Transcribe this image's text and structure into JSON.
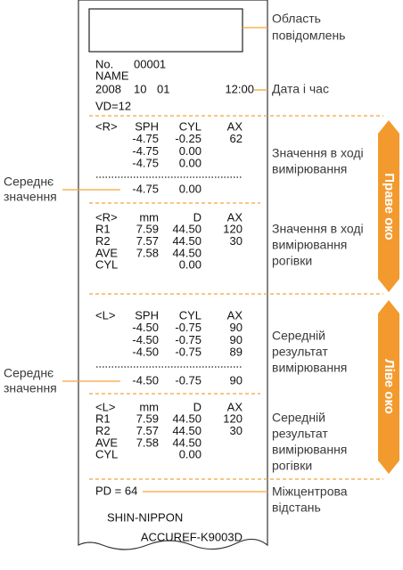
{
  "printout": {
    "header": {
      "no_label": "No.",
      "no": "00001",
      "name": "NAME",
      "year": "2008",
      "month": "10",
      "day": "01",
      "time": "12:00",
      "vd": "VD=12"
    },
    "right_refraction": {
      "header": [
        "<R>",
        "SPH",
        "CYL",
        "AX"
      ],
      "rows": [
        [
          "-4.75",
          "-0.25",
          "62"
        ],
        [
          "-4.75",
          "0.00"
        ],
        [
          "-4.75",
          "0.00"
        ]
      ],
      "average": [
        "-4.75",
        "0.00"
      ]
    },
    "right_keratometry": {
      "header": [
        "<R>",
        "mm",
        "D",
        "AX"
      ],
      "rows": [
        [
          "R1",
          "7.59",
          "44.50",
          "120"
        ],
        [
          "R2",
          "7.57",
          "44.50",
          "30"
        ],
        [
          "AVE",
          "7.58",
          "44.50"
        ],
        [
          "CYL",
          "0.00"
        ]
      ]
    },
    "left_refraction": {
      "header": [
        "<L>",
        "SPH",
        "CYL",
        "AX"
      ],
      "rows": [
        [
          "-4.50",
          "-0.75",
          "90"
        ],
        [
          "-4.50",
          "-0.75",
          "90"
        ],
        [
          "-4.50",
          "-0.75",
          "89"
        ]
      ],
      "average": [
        "-4.50",
        "-0.75",
        "90"
      ]
    },
    "left_keratometry": {
      "header": [
        "<L>",
        "mm",
        "D",
        "AX"
      ],
      "rows": [
        [
          "R1",
          "7.59",
          "44.50",
          "120"
        ],
        [
          "R2",
          "7.57",
          "44.50",
          "30"
        ],
        [
          "AVE",
          "7.58",
          "44.50"
        ],
        [
          "CYL",
          "0.00"
        ]
      ]
    },
    "pd": "PD = 64",
    "footer": [
      "SHIN-NIPPON",
      "ACCUREF-K9003D"
    ]
  },
  "callouts": {
    "message_area": [
      "Область",
      "повідомлень"
    ],
    "date_time": [
      "Дата і час"
    ],
    "right_refraction": [
      "Значення в ході",
      "вимірювання"
    ],
    "right_keratometry": [
      "Значення в ході",
      "вимірювання",
      "рогівки"
    ],
    "left_refraction": [
      "Середній",
      "результат",
      "вимірювання"
    ],
    "left_keratometry": [
      "Середній",
      "результат",
      "вимірювання",
      "рогівки"
    ],
    "pd": [
      "Міжцентрова",
      "відстань"
    ],
    "right_average": [
      "Середнє",
      "значення"
    ],
    "left_average": [
      "Середнє",
      "значення"
    ]
  },
  "tabs": [
    "Праве око",
    "Ліве око"
  ]
}
